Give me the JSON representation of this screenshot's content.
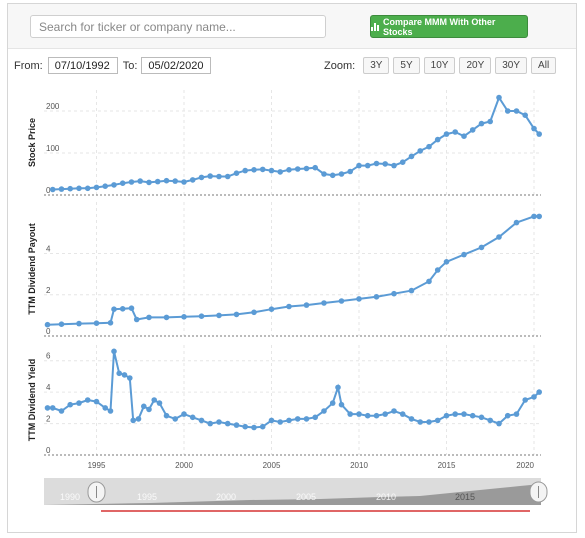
{
  "search": {
    "placeholder": "Search for ticker or company name..."
  },
  "compare_button": {
    "label": "Compare MMM With Other Stocks",
    "color": "#4cae4c"
  },
  "date_range": {
    "from_label": "From:",
    "from_value": "07/10/1992",
    "to_label": "To:",
    "to_value": "05/02/2020"
  },
  "zoom": {
    "label": "Zoom:",
    "buttons": [
      "3Y",
      "5Y",
      "10Y",
      "20Y",
      "30Y",
      "All"
    ]
  },
  "navigator": {
    "labels": [
      "1990",
      "1995",
      "2000",
      "2005",
      "2010",
      "2015"
    ]
  },
  "chart_data": [
    {
      "type": "line",
      "title": "",
      "ylabel": "Stock Price",
      "xlim": [
        1992.0,
        2020.4
      ],
      "ylim": [
        0,
        250
      ],
      "yticks": [
        0,
        100,
        200
      ],
      "series_color": "#5b9bd5",
      "x": [
        1992.5,
        1993.0,
        1993.5,
        1994.0,
        1994.5,
        1995.0,
        1995.5,
        1996.0,
        1996.5,
        1997.0,
        1997.5,
        1998.0,
        1998.5,
        1999.0,
        1999.5,
        2000.0,
        2000.5,
        2001.0,
        2001.5,
        2002.0,
        2002.5,
        2003.0,
        2003.5,
        2004.0,
        2004.5,
        2005.0,
        2005.5,
        2006.0,
        2006.5,
        2007.0,
        2007.5,
        2008.0,
        2008.5,
        2009.0,
        2009.5,
        2010.0,
        2010.5,
        2011.0,
        2011.5,
        2012.0,
        2012.5,
        2013.0,
        2013.5,
        2014.0,
        2014.5,
        2015.0,
        2015.5,
        2016.0,
        2016.5,
        2017.0,
        2017.5,
        2018.0,
        2018.5,
        2019.0,
        2019.5,
        2020.0,
        2020.3
      ],
      "y": [
        13,
        14,
        15,
        16,
        16,
        18,
        21,
        24,
        28,
        31,
        33,
        30,
        32,
        34,
        33,
        31,
        36,
        42,
        45,
        44,
        44,
        52,
        58,
        60,
        61,
        58,
        55,
        60,
        62,
        63,
        65,
        50,
        47,
        50,
        56,
        70,
        70,
        75,
        74,
        70,
        78,
        92,
        105,
        115,
        132,
        145,
        150,
        140,
        155,
        170,
        175,
        232,
        200,
        200,
        190,
        158,
        145
      ]
    },
    {
      "type": "line",
      "title": "",
      "ylabel": "TTM Dividend Payout",
      "xlim": [
        1992.0,
        2020.4
      ],
      "ylim": [
        0,
        6.5
      ],
      "yticks": [
        0,
        2,
        4
      ],
      "series_color": "#5b9bd5",
      "x": [
        1992.2,
        1993.0,
        1994.0,
        1995.0,
        1995.8,
        1996.0,
        1996.5,
        1997.0,
        1997.3,
        1998.0,
        1999.0,
        2000.0,
        2001.0,
        2002.0,
        2003.0,
        2004.0,
        2005.0,
        2006.0,
        2007.0,
        2008.0,
        2009.0,
        2010.0,
        2011.0,
        2012.0,
        2013.0,
        2014.0,
        2014.5,
        2015.0,
        2016.0,
        2017.0,
        2018.0,
        2019.0,
        2020.0,
        2020.3
      ],
      "y": [
        0.55,
        0.57,
        0.6,
        0.62,
        0.64,
        1.3,
        1.32,
        1.35,
        0.8,
        0.9,
        0.9,
        0.93,
        0.96,
        1.0,
        1.05,
        1.15,
        1.3,
        1.43,
        1.5,
        1.6,
        1.7,
        1.8,
        1.9,
        2.05,
        2.2,
        2.65,
        3.2,
        3.6,
        3.95,
        4.3,
        4.8,
        5.5,
        5.8,
        5.8
      ]
    },
    {
      "type": "line",
      "title": "",
      "ylabel": "TTM Dividend Yield",
      "xlim": [
        1992.0,
        2020.4
      ],
      "ylim": [
        0,
        7
      ],
      "yticks": [
        0,
        2,
        4,
        6
      ],
      "xticks": [
        1995,
        2000,
        2005,
        2010,
        2015,
        2020
      ],
      "series_color": "#5b9bd5",
      "x": [
        1992.2,
        1992.5,
        1993.0,
        1993.5,
        1994.0,
        1994.5,
        1995.0,
        1995.5,
        1995.8,
        1996.0,
        1996.3,
        1996.6,
        1996.9,
        1997.1,
        1997.4,
        1997.7,
        1998.0,
        1998.3,
        1998.6,
        1999.0,
        1999.5,
        2000.0,
        2000.5,
        2001.0,
        2001.5,
        2002.0,
        2002.5,
        2003.0,
        2003.5,
        2004.0,
        2004.5,
        2005.0,
        2005.5,
        2006.0,
        2006.5,
        2007.0,
        2007.5,
        2008.0,
        2008.5,
        2008.8,
        2009.0,
        2009.5,
        2010.0,
        2010.5,
        2011.0,
        2011.5,
        2012.0,
        2012.5,
        2013.0,
        2013.5,
        2014.0,
        2014.5,
        2015.0,
        2015.5,
        2016.0,
        2016.5,
        2017.0,
        2017.5,
        2018.0,
        2018.5,
        2019.0,
        2019.5,
        2020.0,
        2020.3
      ],
      "y": [
        3.0,
        3.0,
        2.8,
        3.2,
        3.3,
        3.5,
        3.4,
        3.0,
        2.8,
        6.6,
        5.2,
        5.1,
        4.9,
        2.2,
        2.3,
        3.1,
        2.9,
        3.5,
        3.3,
        2.5,
        2.3,
        2.6,
        2.4,
        2.2,
        2.0,
        2.1,
        2.0,
        1.9,
        1.8,
        1.75,
        1.8,
        2.2,
        2.1,
        2.2,
        2.3,
        2.3,
        2.4,
        2.8,
        3.3,
        4.3,
        3.2,
        2.6,
        2.6,
        2.5,
        2.5,
        2.6,
        2.8,
        2.6,
        2.3,
        2.1,
        2.1,
        2.2,
        2.5,
        2.6,
        2.6,
        2.5,
        2.4,
        2.2,
        2.0,
        2.5,
        2.6,
        3.5,
        3.7,
        4.0
      ]
    }
  ]
}
